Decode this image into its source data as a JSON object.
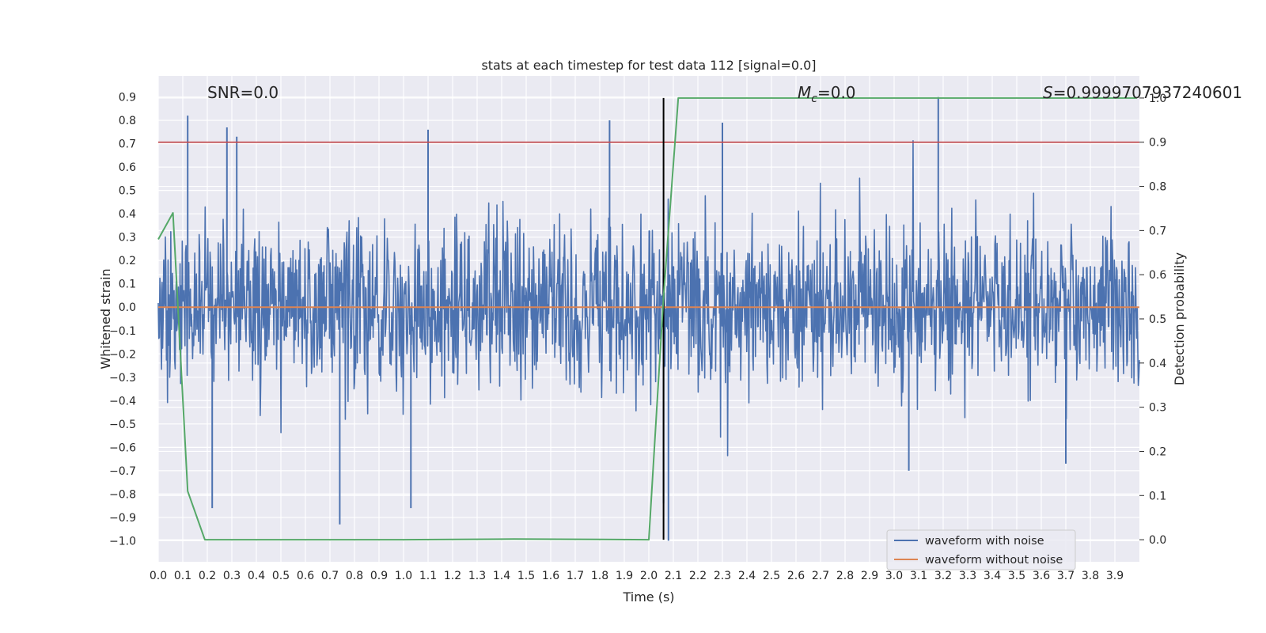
{
  "chart_data": {
    "type": "line",
    "title": "stats at each timestep for test data 112 [signal=0.0]",
    "xlabel": "Time (s)",
    "ylabel": "Whitened strain",
    "y2label": "Detection probability",
    "xlim": [
      0.0,
      4.0
    ],
    "ylim": [
      -1.09,
      0.99
    ],
    "y2lim": [
      -0.05,
      1.05
    ],
    "xticks": [
      0.0,
      0.1,
      0.2,
      0.3,
      0.4,
      0.5,
      0.6,
      0.7,
      0.8,
      0.9,
      1.0,
      1.1,
      1.2,
      1.3,
      1.4,
      1.5,
      1.6,
      1.7,
      1.8,
      1.9,
      2.0,
      2.1,
      2.2,
      2.3,
      2.4,
      2.5,
      2.6,
      2.7,
      2.8,
      2.9,
      3.0,
      3.1,
      3.2,
      3.3,
      3.4,
      3.5,
      3.6,
      3.7,
      3.8,
      3.9
    ],
    "xtick_labels": [
      "0.0",
      "0.1",
      "0.2",
      "0.3",
      "0.4",
      "0.5",
      "0.6",
      "0.7",
      "0.8",
      "0.9",
      "1.0",
      "1.1",
      "1.2",
      "1.3",
      "1.4",
      "1.5",
      "1.6",
      "1.7",
      "1.8",
      "1.9",
      "2.0",
      "2.1",
      "2.2",
      "2.3",
      "2.4",
      "2.5",
      "2.6",
      "2.7",
      "2.8",
      "2.9",
      "3.0",
      "3.1",
      "3.2",
      "3.3",
      "3.4",
      "3.5",
      "3.6",
      "3.7",
      "3.8",
      "3.9"
    ],
    "yticks": [
      -1.0,
      -0.9,
      -0.8,
      -0.7,
      -0.6,
      -0.5,
      -0.4,
      -0.3,
      -0.2,
      -0.1,
      0.0,
      0.1,
      0.2,
      0.3,
      0.4,
      0.5,
      0.6,
      0.7,
      0.8,
      0.9
    ],
    "ytick_labels": [
      "−1.0",
      "−0.9",
      "−0.8",
      "−0.7",
      "−0.6",
      "−0.5",
      "−0.4",
      "−0.3",
      "−0.2",
      "−0.1",
      "0.0",
      "0.1",
      "0.2",
      "0.3",
      "0.4",
      "0.5",
      "0.6",
      "0.7",
      "0.8",
      "0.9"
    ],
    "y2ticks": [
      0.0,
      0.1,
      0.2,
      0.3,
      0.4,
      0.5,
      0.6,
      0.7,
      0.8,
      0.9,
      1.0
    ],
    "y2tick_labels": [
      "0.0",
      "0.1",
      "0.2",
      "0.3",
      "0.4",
      "0.5",
      "0.6",
      "0.7",
      "0.8",
      "0.9",
      "1.0"
    ],
    "grid": true,
    "legend_position": "lower-right",
    "annotations": {
      "snr": "SNR=0.0",
      "mc_symbol": "M",
      "mc_subscript": "c",
      "mc_value": "=0.0",
      "s_symbol": "S",
      "s_value": "=0.9999707937240601"
    },
    "series": [
      {
        "name": "waveform with noise",
        "axis": "left",
        "color": "#4c72b0",
        "kind": "noise",
        "n_samples": 1800,
        "typical_range": [
          -0.45,
          0.45
        ],
        "peaks": [
          [
            0.12,
            0.82
          ],
          [
            0.28,
            0.77
          ],
          [
            0.32,
            0.73
          ],
          [
            1.1,
            0.76
          ],
          [
            1.84,
            0.8
          ],
          [
            2.3,
            0.79
          ],
          [
            3.18,
            0.9
          ],
          [
            0.74,
            -0.93
          ],
          [
            1.03,
            -0.86
          ],
          [
            0.22,
            -0.86
          ],
          [
            2.08,
            -1.0
          ],
          [
            2.06,
            -0.84
          ],
          [
            3.06,
            -0.7
          ],
          [
            3.7,
            -0.67
          ]
        ]
      },
      {
        "name": "waveform without noise",
        "axis": "left",
        "color": "#dd8452",
        "x": [
          0.0,
          4.0
        ],
        "y": [
          0.0,
          0.0
        ]
      },
      {
        "axis": "right",
        "color": "#55a868",
        "x": [
          0.0,
          0.06,
          0.12,
          0.19,
          1.0,
          1.45,
          2.0,
          2.06,
          2.12,
          3.99
        ],
        "y": [
          0.68,
          0.74,
          0.11,
          0.0,
          0.0,
          0.0015,
          0.0,
          0.55,
          1.0,
          1.0
        ]
      }
    ],
    "reference_lines": [
      {
        "orientation": "horizontal",
        "axis": "right",
        "value": 0.9,
        "color": "#c44e52"
      },
      {
        "orientation": "vertical",
        "value": 2.06,
        "color": "#000000"
      }
    ]
  }
}
